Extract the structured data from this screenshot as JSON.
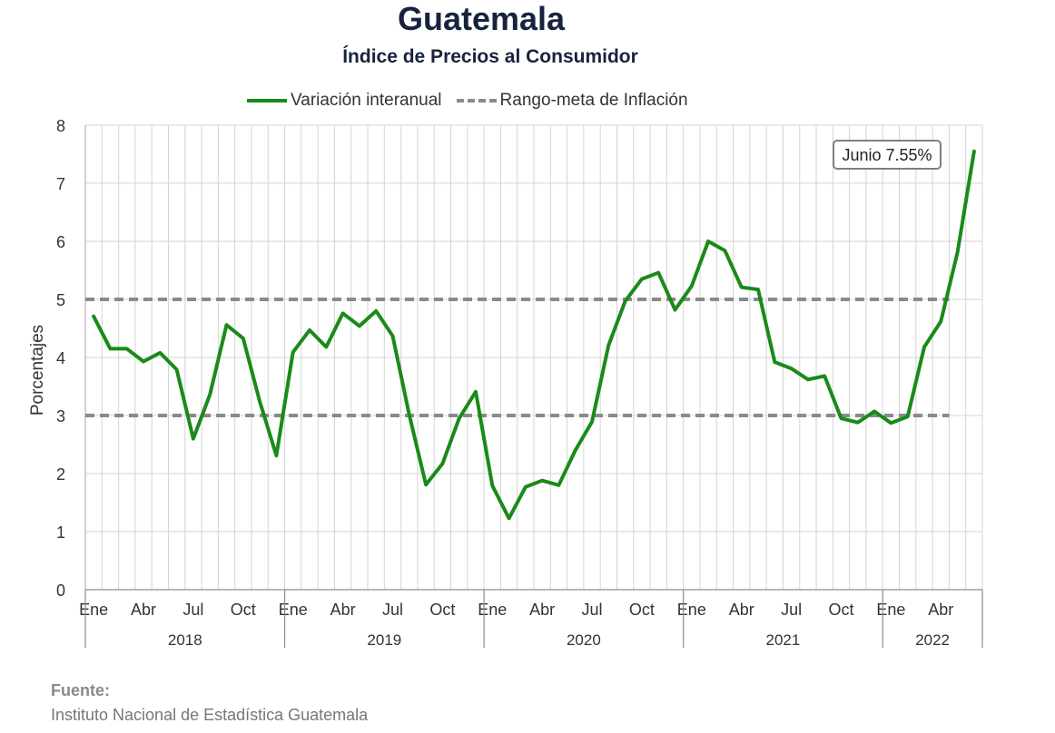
{
  "header": {
    "title": "Guatemala",
    "subtitle": "Índice de Precios al Consumidor"
  },
  "legend": {
    "series_label": "Variación interanual",
    "band_label": "Rango-meta de Inflación"
  },
  "annotation": {
    "text": "Junio 7.55%"
  },
  "source": {
    "label": "Fuente:",
    "text": "Instituto Nacional de Estadística Guatemala"
  },
  "chart_data": {
    "type": "line",
    "ylabel": "Porcentajes",
    "ylim": [
      0,
      8
    ],
    "yticks": [
      0,
      1,
      2,
      3,
      4,
      5,
      6,
      7,
      8
    ],
    "grid": true,
    "legend_position": "top",
    "month_tick_labels": [
      "Ene",
      "Abr",
      "Jul",
      "Oct"
    ],
    "years": [
      "2018",
      "2019",
      "2020",
      "2021",
      "2022"
    ],
    "x": [
      "2018-01",
      "2018-02",
      "2018-03",
      "2018-04",
      "2018-05",
      "2018-06",
      "2018-07",
      "2018-08",
      "2018-09",
      "2018-10",
      "2018-11",
      "2018-12",
      "2019-01",
      "2019-02",
      "2019-03",
      "2019-04",
      "2019-05",
      "2019-06",
      "2019-07",
      "2019-08",
      "2019-09",
      "2019-10",
      "2019-11",
      "2019-12",
      "2020-01",
      "2020-02",
      "2020-03",
      "2020-04",
      "2020-05",
      "2020-06",
      "2020-07",
      "2020-08",
      "2020-09",
      "2020-10",
      "2020-11",
      "2020-12",
      "2021-01",
      "2021-02",
      "2021-03",
      "2021-04",
      "2021-05",
      "2021-06",
      "2021-07",
      "2021-08",
      "2021-09",
      "2021-10",
      "2021-11",
      "2021-12",
      "2022-01",
      "2022-02",
      "2022-03",
      "2022-04",
      "2022-05",
      "2022-06"
    ],
    "series": [
      {
        "name": "Variación interanual",
        "color": "#1a8a1a",
        "values": [
          4.71,
          4.15,
          4.15,
          3.93,
          4.08,
          3.79,
          2.6,
          3.36,
          4.56,
          4.33,
          3.24,
          2.31,
          4.09,
          4.47,
          4.18,
          4.76,
          4.54,
          4.8,
          4.37,
          3.01,
          1.81,
          2.17,
          2.95,
          3.41,
          1.79,
          1.23,
          1.77,
          1.88,
          1.8,
          2.4,
          2.89,
          4.21,
          4.97,
          5.35,
          5.46,
          4.82,
          5.23,
          6.0,
          5.84,
          5.21,
          5.17,
          3.92,
          3.81,
          3.62,
          3.68,
          2.95,
          2.88,
          3.07,
          2.87,
          2.98,
          4.18,
          4.62,
          5.81,
          7.55
        ]
      }
    ],
    "target_band": {
      "name": "Rango-meta de Inflación",
      "lower": 3,
      "upper": 5,
      "color": "#8a8a8a"
    }
  }
}
